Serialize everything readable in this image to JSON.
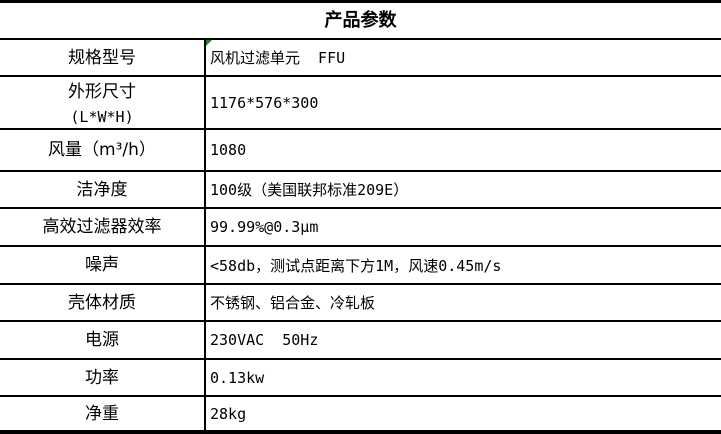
{
  "title": "产品参数",
  "rows": [
    {
      "label": "规格型号",
      "value": "风机过滤单元  FFU"
    },
    {
      "label": "外形尺寸",
      "label2": "(L*W*H)",
      "value": "1176*576*300"
    },
    {
      "label": "风量（m³/h）",
      "value": "1080"
    },
    {
      "label": "洁净度",
      "value": "100级（美国联邦标准209E）"
    },
    {
      "label": "高效过滤器效率",
      "value": "99.99%@0.3μm"
    },
    {
      "label": "噪声",
      "value": "<58db，测试点距离下方1M，风速0.45m/s"
    },
    {
      "label": "壳体材质",
      "value": "不锈钢、铝合金、冷轧板"
    },
    {
      "label": "电源",
      "value": "230VAC  50Hz"
    },
    {
      "label": "功率",
      "value": "0.13kw"
    },
    {
      "label": "净重",
      "value": "28kg"
    }
  ]
}
